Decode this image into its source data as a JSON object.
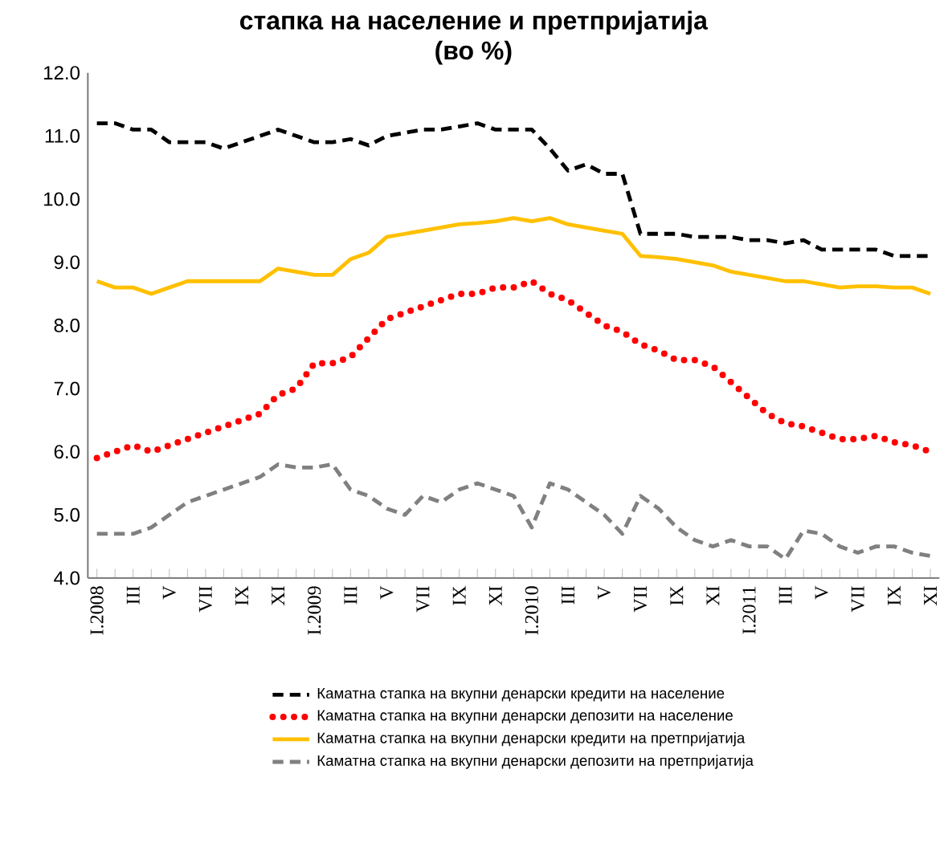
{
  "chart_data": {
    "type": "line",
    "title": "стапка на население и претпријатија",
    "subtitle": "(во %)",
    "categories": [
      "I.2008",
      null,
      "III",
      null,
      "V",
      null,
      "VII",
      null,
      "IX",
      null,
      "XI",
      null,
      "I.2009",
      null,
      "III",
      null,
      "V",
      null,
      "VII",
      null,
      "IX",
      null,
      "XI",
      null,
      "I.2010",
      null,
      "III",
      null,
      "V",
      null,
      "VII",
      null,
      "IX",
      null,
      "XI",
      null,
      "I.2011",
      null,
      "III",
      null,
      "V",
      null,
      "VII",
      null,
      "IX",
      null,
      "XI"
    ],
    "series": [
      {
        "name": "Каматна стапка на вкупни денарски кредити на население",
        "color": "#000000",
        "line_style": "dashed",
        "values": [
          11.2,
          11.2,
          11.1,
          11.1,
          10.9,
          10.9,
          10.9,
          10.8,
          10.9,
          11.0,
          11.1,
          11.0,
          10.9,
          10.9,
          10.95,
          10.85,
          11.0,
          11.05,
          11.1,
          11.1,
          11.15,
          11.2,
          11.1,
          11.1,
          11.1,
          10.8,
          10.45,
          10.55,
          10.4,
          10.4,
          9.45,
          9.45,
          9.45,
          9.4,
          9.4,
          9.4,
          9.35,
          9.35,
          9.3,
          9.35,
          9.2,
          9.2,
          9.2,
          9.2,
          9.1,
          9.1,
          9.1
        ]
      },
      {
        "name": "Каматна стапка на вкупни денарски депозити на население",
        "color": "#ff0000",
        "line_style": "dotted",
        "values": [
          5.9,
          6.0,
          6.1,
          6.0,
          6.1,
          6.2,
          6.3,
          6.4,
          6.5,
          6.6,
          6.9,
          7.0,
          7.4,
          7.4,
          7.5,
          7.8,
          8.1,
          8.2,
          8.3,
          8.4,
          8.5,
          8.5,
          8.6,
          8.6,
          8.7,
          8.5,
          8.4,
          8.2,
          8.0,
          7.9,
          7.7,
          7.6,
          7.45,
          7.45,
          7.35,
          7.1,
          6.85,
          6.6,
          6.45,
          6.4,
          6.3,
          6.2,
          6.2,
          6.25,
          6.15,
          6.1,
          6.0
        ]
      },
      {
        "name": "Каматна стапка на вкупни денарски кредити на претпријатија",
        "color": "#ffc000",
        "line_style": "solid",
        "values": [
          8.7,
          8.6,
          8.6,
          8.5,
          8.6,
          8.7,
          8.7,
          8.7,
          8.7,
          8.7,
          8.9,
          8.85,
          8.8,
          8.8,
          9.05,
          9.15,
          9.4,
          9.45,
          9.5,
          9.55,
          9.6,
          9.62,
          9.65,
          9.7,
          9.65,
          9.7,
          9.6,
          9.55,
          9.5,
          9.45,
          9.1,
          9.08,
          9.05,
          9.0,
          8.95,
          8.85,
          8.8,
          8.75,
          8.7,
          8.7,
          8.65,
          8.6,
          8.62,
          8.62,
          8.6,
          8.6,
          8.5
        ]
      },
      {
        "name": "Каматна стапка на вкупни денарски депозити на претпријатија",
        "color": "#808080",
        "line_style": "dashed",
        "values": [
          4.7,
          4.7,
          4.7,
          4.8,
          5.0,
          5.2,
          5.3,
          5.4,
          5.5,
          5.6,
          5.8,
          5.75,
          5.75,
          5.8,
          5.4,
          5.3,
          5.1,
          5.0,
          5.3,
          5.2,
          5.4,
          5.5,
          5.4,
          5.3,
          4.8,
          5.5,
          5.4,
          5.2,
          5.0,
          4.7,
          5.3,
          5.1,
          4.8,
          4.6,
          4.5,
          4.6,
          4.5,
          4.5,
          4.3,
          4.75,
          4.7,
          4.5,
          4.4,
          4.5,
          4.5,
          4.4,
          4.35
        ]
      }
    ],
    "ylim": [
      4,
      12
    ],
    "yticks": [
      {
        "value": 4,
        "label": "4.0"
      },
      {
        "value": 5,
        "label": "5.0"
      },
      {
        "value": 6,
        "label": "6.0"
      },
      {
        "value": 7,
        "label": "7.0"
      },
      {
        "value": 8,
        "label": "8.0"
      },
      {
        "value": 9,
        "label": "9.0"
      },
      {
        "value": 10,
        "label": "10.0"
      },
      {
        "value": 11,
        "label": "11.0"
      },
      {
        "value": 12,
        "label": "12.0"
      }
    ],
    "legend": "bottom",
    "marker": "none",
    "grid": false
  }
}
